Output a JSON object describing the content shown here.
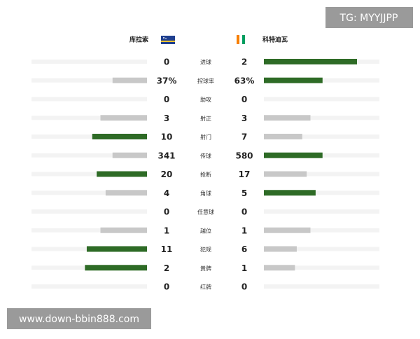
{
  "watermark_top": "TG: MYYJJPP",
  "watermark_bottom": "www.down-bbin888.com",
  "teams": {
    "home": "库拉索",
    "away": "科特迪瓦"
  },
  "lead_color": "#2e6b26",
  "trail_color": "#c8c8c8",
  "track_color": "#f3f3f3",
  "stats": [
    {
      "label": "进球",
      "home": 0,
      "away": 2
    },
    {
      "label": "控球率",
      "home": 37,
      "away": 63,
      "home_label": "37%",
      "away_label": "63%"
    },
    {
      "label": "助攻",
      "home": 0,
      "away": 0
    },
    {
      "label": "射正",
      "home": 3,
      "away": 3
    },
    {
      "label": "射门",
      "home": 10,
      "away": 7
    },
    {
      "label": "传球",
      "home": 341,
      "away": 580
    },
    {
      "label": "抢断",
      "home": 20,
      "away": 17
    },
    {
      "label": "角球",
      "home": 4,
      "away": 5
    },
    {
      "label": "任意球",
      "home": 0,
      "away": 0
    },
    {
      "label": "越位",
      "home": 1,
      "away": 1
    },
    {
      "label": "犯规",
      "home": 11,
      "away": 6
    },
    {
      "label": "黄牌",
      "home": 2,
      "away": 1
    },
    {
      "label": "红牌",
      "home": 0,
      "away": 0
    }
  ]
}
